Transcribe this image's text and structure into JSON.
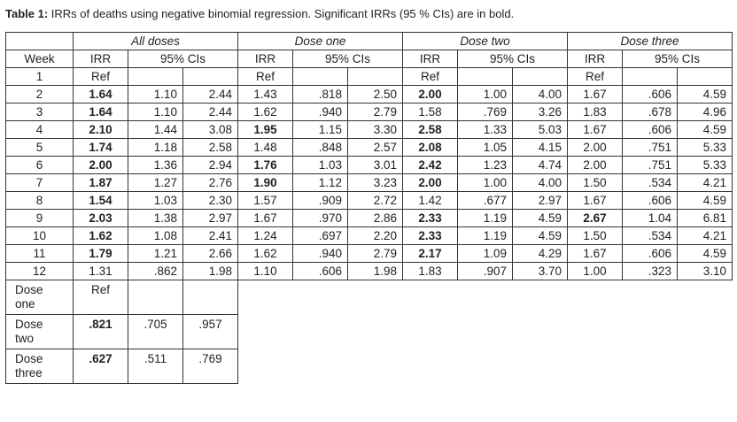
{
  "caption": {
    "label": "Table 1:",
    "text": " IRRs of deaths using negative binomial regression. Significant IRRs (95 % CIs) are in bold."
  },
  "groups": [
    "All doses",
    "Dose one",
    "Dose two",
    "Dose three"
  ],
  "subheader": {
    "week": "Week",
    "irr": "IRR",
    "ci": "95% CIs"
  },
  "rows": [
    {
      "week": "1",
      "cells": [
        [
          "Ref",
          "",
          ""
        ],
        [
          "Ref",
          "",
          ""
        ],
        [
          "Ref",
          "",
          ""
        ],
        [
          "Ref",
          "",
          ""
        ]
      ],
      "bold": [
        false,
        false,
        false,
        false
      ]
    },
    {
      "week": "2",
      "cells": [
        [
          "1.64",
          "1.10",
          "2.44"
        ],
        [
          "1.43",
          ".818",
          "2.50"
        ],
        [
          "2.00",
          "1.00",
          "4.00"
        ],
        [
          "1.67",
          ".606",
          "4.59"
        ]
      ],
      "bold": [
        true,
        false,
        true,
        false
      ]
    },
    {
      "week": "3",
      "cells": [
        [
          "1.64",
          "1.10",
          "2.44"
        ],
        [
          "1.62",
          ".940",
          "2.79"
        ],
        [
          "1.58",
          ".769",
          "3.26"
        ],
        [
          "1.83",
          ".678",
          "4.96"
        ]
      ],
      "bold": [
        true,
        false,
        false,
        false
      ]
    },
    {
      "week": "4",
      "cells": [
        [
          "2.10",
          "1.44",
          "3.08"
        ],
        [
          "1.95",
          "1.15",
          "3.30"
        ],
        [
          "2.58",
          "1.33",
          "5.03"
        ],
        [
          "1.67",
          ".606",
          "4.59"
        ]
      ],
      "bold": [
        true,
        true,
        true,
        false
      ]
    },
    {
      "week": "5",
      "cells": [
        [
          "1.74",
          "1.18",
          "2.58"
        ],
        [
          "1.48",
          ".848",
          "2.57"
        ],
        [
          "2.08",
          "1.05",
          "4.15"
        ],
        [
          "2.00",
          ".751",
          "5.33"
        ]
      ],
      "bold": [
        true,
        false,
        true,
        false
      ]
    },
    {
      "week": "6",
      "cells": [
        [
          "2.00",
          "1.36",
          "2.94"
        ],
        [
          "1.76",
          "1.03",
          "3.01"
        ],
        [
          "2.42",
          "1.23",
          "4.74"
        ],
        [
          "2.00",
          ".751",
          "5.33"
        ]
      ],
      "bold": [
        true,
        true,
        true,
        false
      ]
    },
    {
      "week": "7",
      "cells": [
        [
          "1.87",
          "1.27",
          "2.76"
        ],
        [
          "1.90",
          "1.12",
          "3.23"
        ],
        [
          "2.00",
          "1.00",
          "4.00"
        ],
        [
          "1.50",
          ".534",
          "4.21"
        ]
      ],
      "bold": [
        true,
        true,
        true,
        false
      ]
    },
    {
      "week": "8",
      "cells": [
        [
          "1.54",
          "1.03",
          "2.30"
        ],
        [
          "1.57",
          ".909",
          "2.72"
        ],
        [
          "1.42",
          ".677",
          "2.97"
        ],
        [
          "1.67",
          ".606",
          "4.59"
        ]
      ],
      "bold": [
        true,
        false,
        false,
        false
      ]
    },
    {
      "week": "9",
      "cells": [
        [
          "2.03",
          "1.38",
          "2.97"
        ],
        [
          "1.67",
          ".970",
          "2.86"
        ],
        [
          "2.33",
          "1.19",
          "4.59"
        ],
        [
          "2.67",
          "1.04",
          "6.81"
        ]
      ],
      "bold": [
        true,
        false,
        true,
        true
      ]
    },
    {
      "week": "10",
      "cells": [
        [
          "1.62",
          "1.08",
          "2.41"
        ],
        [
          "1.24",
          ".697",
          "2.20"
        ],
        [
          "2.33",
          "1.19",
          "4.59"
        ],
        [
          "1.50",
          ".534",
          "4.21"
        ]
      ],
      "bold": [
        true,
        false,
        true,
        false
      ]
    },
    {
      "week": "11",
      "cells": [
        [
          "1.79",
          "1.21",
          "2.66"
        ],
        [
          "1.62",
          ".940",
          "2.79"
        ],
        [
          "2.17",
          "1.09",
          "4.29"
        ],
        [
          "1.67",
          ".606",
          "4.59"
        ]
      ],
      "bold": [
        true,
        false,
        true,
        false
      ]
    },
    {
      "week": "12",
      "cells": [
        [
          "1.31",
          ".862",
          "1.98"
        ],
        [
          "1.10",
          ".606",
          "1.98"
        ],
        [
          "1.83",
          ".907",
          "3.70"
        ],
        [
          "1.00",
          ".323",
          "3.10"
        ]
      ],
      "bold": [
        false,
        false,
        false,
        false
      ]
    }
  ],
  "dose_rows": [
    {
      "label_line1": "Dose",
      "label_line2": "one",
      "irr": "Ref",
      "lo": "",
      "hi": "",
      "bold": false
    },
    {
      "label_line1": "Dose",
      "label_line2": "two",
      "irr": ".821",
      "lo": ".705",
      "hi": ".957",
      "bold": true
    },
    {
      "label_line1": "Dose",
      "label_line2": "three",
      "irr": ".627",
      "lo": ".511",
      "hi": ".769",
      "bold": true
    }
  ]
}
